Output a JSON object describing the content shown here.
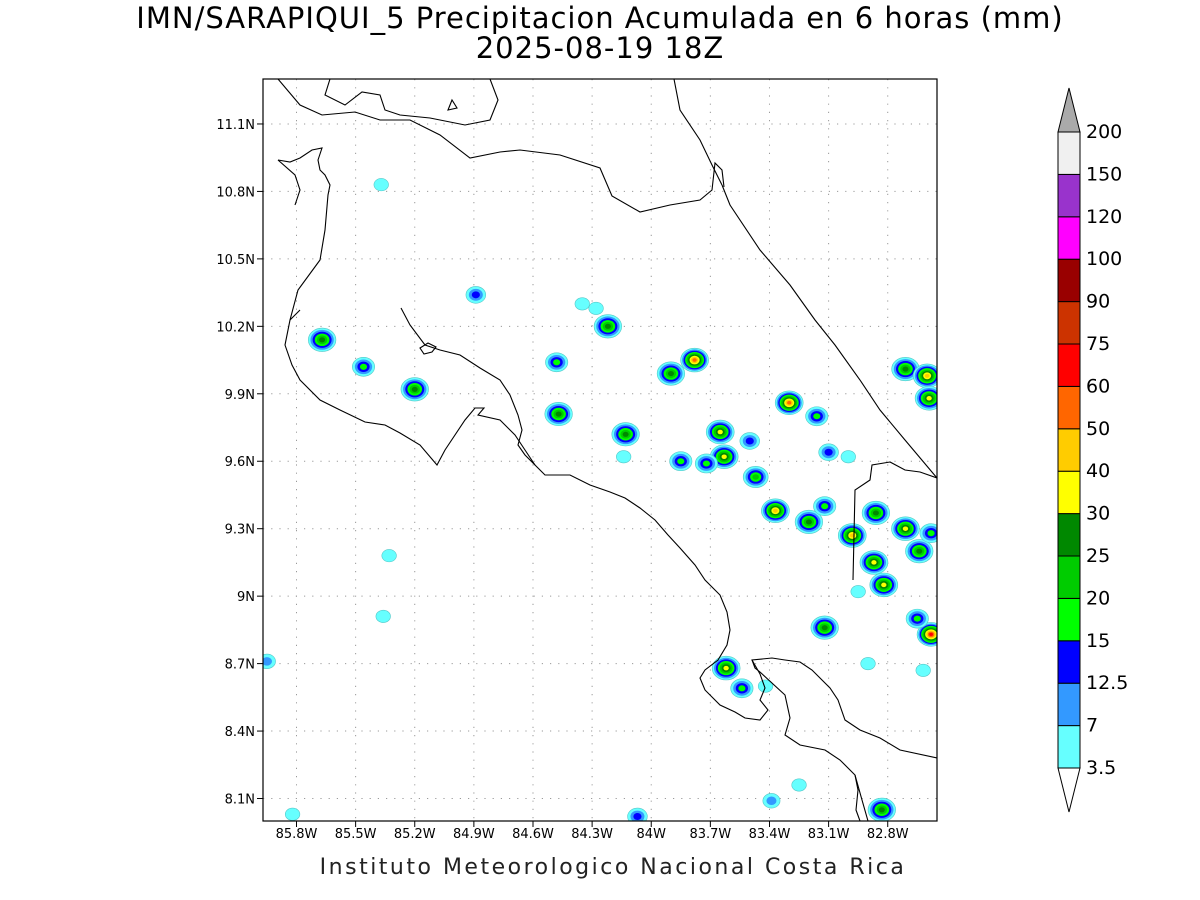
{
  "title_line1": "IMN/SARAPIQUI_5 Precipitacion Acumulada en 6 horas (mm)",
  "title_line2": "2025-08-19 18Z",
  "footer": "Instituto Meteorologico Nacional Costa Rica",
  "axes": {
    "lon_ticks": [
      "85.8W",
      "85.5W",
      "85.2W",
      "84.9W",
      "84.6W",
      "84.3W",
      "84W",
      "83.7W",
      "83.4W",
      "83.1W",
      "82.8W"
    ],
    "lat_ticks": [
      "11.1N",
      "10.8N",
      "10.5N",
      "10.2N",
      "9.9N",
      "9.6N",
      "9.3N",
      "9N",
      "8.7N",
      "8.4N",
      "8.1N"
    ],
    "lon_values": [
      -85.8,
      -85.5,
      -85.2,
      -84.9,
      -84.6,
      -84.3,
      -84.0,
      -83.7,
      -83.4,
      -83.1,
      -82.8
    ],
    "lat_values": [
      11.1,
      10.8,
      10.5,
      10.2,
      9.9,
      9.6,
      9.3,
      9.0,
      8.7,
      8.4,
      8.1
    ],
    "lon_range": [
      -85.97,
      -82.55
    ],
    "lat_range": [
      8.0,
      11.3
    ],
    "grid": true
  },
  "colorbar": {
    "labels": [
      "3.5",
      "7",
      "12.5",
      "15",
      "20",
      "25",
      "30",
      "40",
      "50",
      "60",
      "75",
      "90",
      "100",
      "120",
      "150",
      "200"
    ],
    "colors": [
      "#ffffff",
      "#66ffff",
      "#3399ff",
      "#0000ff",
      "#00ff00",
      "#00cc00",
      "#008800",
      "#ffff00",
      "#ffcc00",
      "#ff6600",
      "#ff0000",
      "#cc3300",
      "#990000",
      "#ff00ff",
      "#9933cc",
      "#f0f0f0"
    ],
    "over_color": "#aaaaaa",
    "under_color": "#ffffff"
  },
  "rain_cells": [
    {
      "lon": -85.67,
      "lat": 10.14,
      "peak": 25
    },
    {
      "lon": -85.46,
      "lat": 10.02,
      "peak": 15
    },
    {
      "lon": -85.2,
      "lat": 9.92,
      "peak": 25
    },
    {
      "lon": -84.89,
      "lat": 10.34,
      "peak": 12.5
    },
    {
      "lon": -84.48,
      "lat": 10.04,
      "peak": 15
    },
    {
      "lon": -84.47,
      "lat": 9.81,
      "peak": 25
    },
    {
      "lon": -84.22,
      "lat": 10.2,
      "peak": 25
    },
    {
      "lon": -84.13,
      "lat": 9.72,
      "peak": 25
    },
    {
      "lon": -83.9,
      "lat": 9.99,
      "peak": 25
    },
    {
      "lon": -83.78,
      "lat": 10.05,
      "peak": 50
    },
    {
      "lon": -83.85,
      "lat": 9.6,
      "peak": 15
    },
    {
      "lon": -83.65,
      "lat": 9.73,
      "peak": 30
    },
    {
      "lon": -83.63,
      "lat": 9.62,
      "peak": 30
    },
    {
      "lon": -83.72,
      "lat": 9.59,
      "peak": 15
    },
    {
      "lon": -83.5,
      "lat": 9.69,
      "peak": 12.5
    },
    {
      "lon": -83.47,
      "lat": 9.53,
      "peak": 20
    },
    {
      "lon": -83.3,
      "lat": 9.86,
      "peak": 50
    },
    {
      "lon": -83.16,
      "lat": 9.8,
      "peak": 15
    },
    {
      "lon": -83.37,
      "lat": 9.38,
      "peak": 40
    },
    {
      "lon": -83.2,
      "lat": 9.33,
      "peak": 25
    },
    {
      "lon": -83.12,
      "lat": 9.4,
      "peak": 15
    },
    {
      "lon": -82.98,
      "lat": 9.27,
      "peak": 40
    },
    {
      "lon": -82.86,
      "lat": 9.37,
      "peak": 25
    },
    {
      "lon": -82.87,
      "lat": 9.15,
      "peak": 30
    },
    {
      "lon": -82.82,
      "lat": 9.05,
      "peak": 30
    },
    {
      "lon": -82.71,
      "lat": 9.3,
      "peak": 30
    },
    {
      "lon": -82.64,
      "lat": 9.2,
      "peak": 25
    },
    {
      "lon": -82.58,
      "lat": 9.28,
      "peak": 15
    },
    {
      "lon": -82.58,
      "lat": 8.83,
      "peak": 60
    },
    {
      "lon": -82.65,
      "lat": 8.9,
      "peak": 15
    },
    {
      "lon": -82.71,
      "lat": 10.01,
      "peak": 25
    },
    {
      "lon": -82.6,
      "lat": 9.98,
      "peak": 40
    },
    {
      "lon": -82.59,
      "lat": 9.88,
      "peak": 30
    },
    {
      "lon": -83.12,
      "lat": 8.86,
      "peak": 25
    },
    {
      "lon": -83.62,
      "lat": 8.68,
      "peak": 30
    },
    {
      "lon": -83.54,
      "lat": 8.59,
      "peak": 15
    },
    {
      "lon": -83.1,
      "lat": 9.64,
      "peak": 12.5
    },
    {
      "lon": -84.07,
      "lat": 8.02,
      "peak": 12.5
    },
    {
      "lon": -82.83,
      "lat": 8.05,
      "peak": 25
    },
    {
      "lon": -83.39,
      "lat": 8.09,
      "peak": 7
    },
    {
      "lon": -83.25,
      "lat": 8.16,
      "peak": 3.5
    },
    {
      "lon": -85.82,
      "lat": 8.03,
      "peak": 3.5
    },
    {
      "lon": -85.95,
      "lat": 8.71,
      "peak": 7
    },
    {
      "lon": -84.28,
      "lat": 10.28,
      "peak": 3.5
    },
    {
      "lon": -84.35,
      "lat": 10.3,
      "peak": 3.5
    },
    {
      "lon": -85.33,
      "lat": 9.18,
      "peak": 3.5
    },
    {
      "lon": -85.37,
      "lat": 10.83,
      "peak": 3.5
    },
    {
      "lon": -84.14,
      "lat": 9.62,
      "peak": 3.5
    },
    {
      "lon": -83.0,
      "lat": 9.62,
      "peak": 3.5
    },
    {
      "lon": -82.9,
      "lat": 8.7,
      "peak": 3.5
    },
    {
      "lon": -82.95,
      "lat": 9.02,
      "peak": 3.5
    },
    {
      "lon": -83.42,
      "lat": 8.6,
      "peak": 3.5
    },
    {
      "lon": -85.36,
      "lat": 8.91,
      "peak": 3.5
    },
    {
      "lon": -82.62,
      "lat": 8.67,
      "peak": 3.5
    }
  ]
}
